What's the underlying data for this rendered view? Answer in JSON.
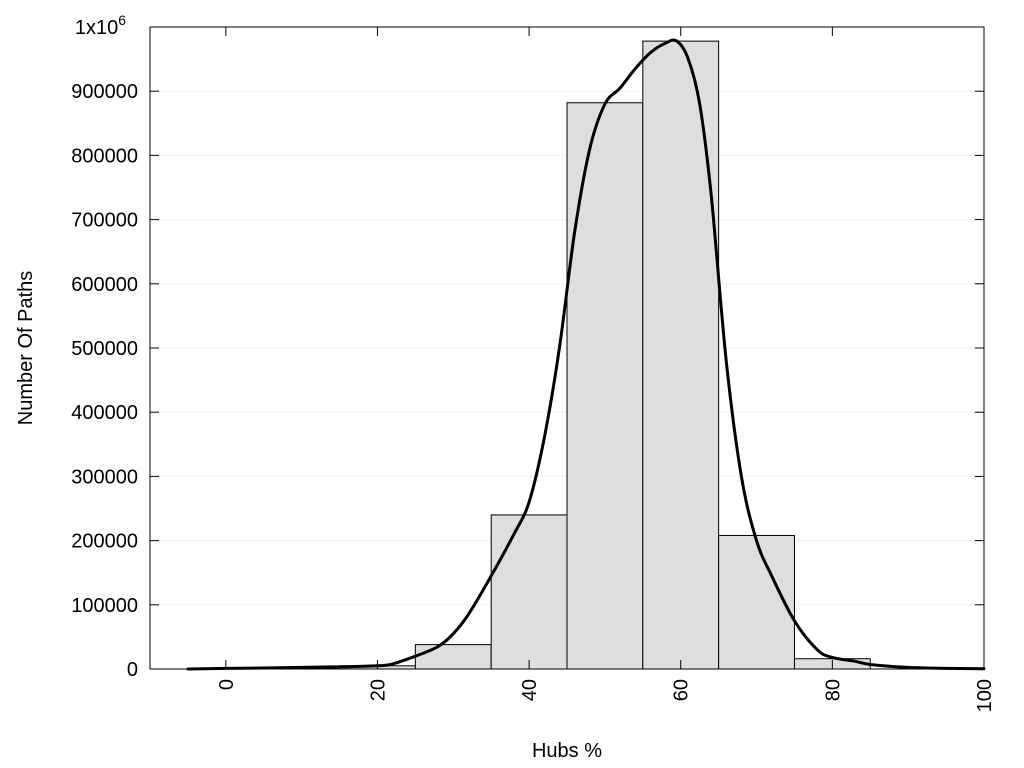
{
  "chart_data": {
    "type": "bar",
    "title": "",
    "xlabel": "Hubs %",
    "ylabel": "Number Of Paths",
    "xlim": [
      -10,
      100
    ],
    "ylim": [
      0,
      1000000
    ],
    "grid": "horizontal dotted",
    "bin_width": 10,
    "x_ticks": [
      0,
      20,
      40,
      60,
      80,
      100
    ],
    "y_ticks": [
      0,
      100000,
      200000,
      300000,
      400000,
      500000,
      600000,
      700000,
      800000,
      900000,
      1000000
    ],
    "y_tick_labels": [
      "0",
      "100000",
      "200000",
      "300000",
      "400000",
      "500000",
      "600000",
      "700000",
      "800000",
      "900000",
      "1x10"
    ],
    "y_top_label_exponent": "6",
    "bins": [
      {
        "center": 0,
        "value": 1000
      },
      {
        "center": 10,
        "value": 1500
      },
      {
        "center": 20,
        "value": 5000
      },
      {
        "center": 30,
        "value": 38000
      },
      {
        "center": 40,
        "value": 240000
      },
      {
        "center": 50,
        "value": 882000
      },
      {
        "center": 60,
        "value": 978000
      },
      {
        "center": 70,
        "value": 208000
      },
      {
        "center": 80,
        "value": 16000
      },
      {
        "center": 90,
        "value": 0
      }
    ],
    "curve": {
      "x": [
        -5,
        0,
        5,
        10,
        15,
        20,
        22,
        25,
        28,
        30,
        32,
        35,
        38,
        40,
        42,
        44,
        46,
        48,
        50,
        52,
        54,
        56,
        58,
        59.5,
        61,
        62.5,
        64,
        66,
        68,
        70,
        72,
        75,
        78,
        80,
        83,
        85,
        90,
        95,
        100
      ],
      "y": [
        0,
        1000,
        1500,
        2500,
        3500,
        5000,
        8000,
        20000,
        35000,
        55000,
        85000,
        145000,
        210000,
        260000,
        360000,
        500000,
        680000,
        810000,
        880000,
        905000,
        935000,
        960000,
        975000,
        978000,
        950000,
        880000,
        740000,
        480000,
        300000,
        200000,
        145000,
        75000,
        30000,
        18000,
        12000,
        7000,
        2500,
        1000,
        500
      ]
    }
  }
}
